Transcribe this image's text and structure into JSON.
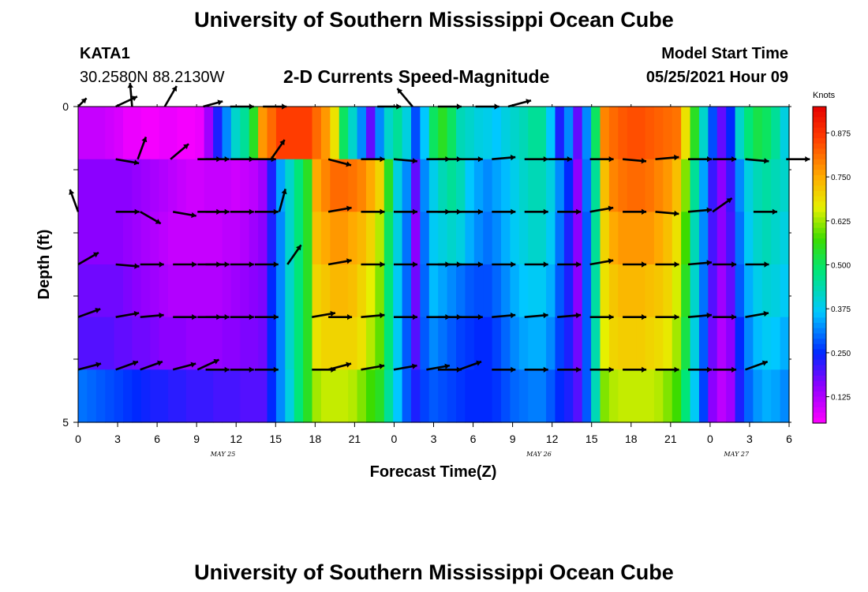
{
  "header": {
    "top_title": "University of Southern Mississippi Ocean Cube",
    "bottom_title": "University of Southern Mississippi Ocean Cube",
    "station": "KATA1",
    "coords": "30.2580N  88.2130W",
    "model_label": "Model Start Time",
    "model_time": "05/25/2021 Hour 09"
  },
  "chart_data": {
    "type": "heatmap",
    "title": "2-D Currents Speed-Magnitude",
    "xlabel": "Forecast Time(Z)",
    "ylabel": "Depth (ft)",
    "y_ticks": [
      "0",
      "5"
    ],
    "ylim": [
      0,
      5
    ],
    "x_hours": [
      0,
      3,
      6,
      9,
      12,
      15,
      18,
      21,
      24,
      27,
      30,
      33,
      36,
      39,
      42,
      45,
      48,
      51,
      54
    ],
    "x_tick_labels": [
      "0",
      "3",
      "6",
      "9",
      "12",
      "15",
      "18",
      "21",
      "0",
      "3",
      "6",
      "9",
      "12",
      "15",
      "18",
      "21",
      "0",
      "3",
      "6"
    ],
    "date_labels": [
      {
        "hour": 11,
        "text": "MAY 25"
      },
      {
        "hour": 35,
        "text": "MAY 26"
      },
      {
        "hour": 50,
        "text": "MAY 27"
      }
    ],
    "colorbar": {
      "unit": "Knots",
      "ticks": [
        0.125,
        0.25,
        0.375,
        0.5,
        0.625,
        0.75,
        0.875
      ],
      "tick_labels": [
        "0.125",
        "0.250",
        "0.375",
        "0.500",
        "0.625",
        "0.750",
        "0.875"
      ],
      "min": 0.05,
      "max": 0.95
    },
    "speed_layers": [
      [
        0.06,
        0.06,
        0.06,
        0.05,
        0.04,
        0.02,
        0.02,
        0.01,
        0.01,
        0.02,
        0.02,
        0.01,
        0.01,
        0.02,
        0.1,
        0.2,
        0.3,
        0.4,
        0.45,
        0.55,
        0.8,
        0.85,
        0.9,
        0.9,
        0.9,
        0.9,
        0.85,
        0.8,
        0.7,
        0.5,
        0.4,
        0.3,
        0.15,
        0.3,
        0.4,
        0.45,
        0.38,
        0.25,
        0.35,
        0.5,
        0.55,
        0.5,
        0.42,
        0.4,
        0.38,
        0.37,
        0.35,
        0.38,
        0.4,
        0.42,
        0.45,
        0.45,
        0.35,
        0.2,
        0.3,
        0.15,
        0.3,
        0.5,
        0.82,
        0.85,
        0.87,
        0.88,
        0.88,
        0.87,
        0.86,
        0.85,
        0.84,
        0.7,
        0.55,
        0.4,
        0.25,
        0.15,
        0.22,
        0.4,
        0.48,
        0.52,
        0.5,
        0.45,
        0.38
      ],
      [
        0.12,
        0.12,
        0.12,
        0.12,
        0.12,
        0.12,
        0.11,
        0.1,
        0.09,
        0.08,
        0.07,
        0.06,
        0.05,
        0.05,
        0.06,
        0.06,
        0.06,
        0.05,
        0.06,
        0.07,
        0.1,
        0.2,
        0.32,
        0.4,
        0.48,
        0.55,
        0.78,
        0.82,
        0.85,
        0.85,
        0.84,
        0.82,
        0.78,
        0.72,
        0.55,
        0.38,
        0.3,
        0.15,
        0.3,
        0.37,
        0.42,
        0.45,
        0.42,
        0.35,
        0.32,
        0.3,
        0.32,
        0.34,
        0.37,
        0.4,
        0.42,
        0.42,
        0.38,
        0.3,
        0.22,
        0.12,
        0.28,
        0.45,
        0.75,
        0.82,
        0.84,
        0.85,
        0.85,
        0.84,
        0.82,
        0.8,
        0.75,
        0.62,
        0.45,
        0.32,
        0.18,
        0.12,
        0.18,
        0.3,
        0.38,
        0.42,
        0.44,
        0.42,
        0.4
      ],
      [
        0.12,
        0.12,
        0.12,
        0.12,
        0.12,
        0.11,
        0.1,
        0.09,
        0.08,
        0.07,
        0.06,
        0.06,
        0.06,
        0.06,
        0.06,
        0.06,
        0.07,
        0.07,
        0.08,
        0.1,
        0.12,
        0.2,
        0.3,
        0.4,
        0.48,
        0.55,
        0.75,
        0.78,
        0.8,
        0.8,
        0.78,
        0.76,
        0.72,
        0.65,
        0.5,
        0.38,
        0.28,
        0.12,
        0.28,
        0.36,
        0.38,
        0.4,
        0.38,
        0.33,
        0.3,
        0.28,
        0.3,
        0.33,
        0.36,
        0.38,
        0.4,
        0.4,
        0.36,
        0.28,
        0.2,
        0.12,
        0.26,
        0.45,
        0.72,
        0.78,
        0.8,
        0.8,
        0.8,
        0.8,
        0.78,
        0.75,
        0.7,
        0.58,
        0.42,
        0.3,
        0.17,
        0.12,
        0.17,
        0.28,
        0.36,
        0.4,
        0.42,
        0.4,
        0.38
      ],
      [
        0.14,
        0.14,
        0.14,
        0.14,
        0.14,
        0.13,
        0.12,
        0.11,
        0.1,
        0.09,
        0.08,
        0.08,
        0.08,
        0.08,
        0.08,
        0.08,
        0.09,
        0.1,
        0.11,
        0.12,
        0.13,
        0.22,
        0.3,
        0.4,
        0.48,
        0.55,
        0.72,
        0.74,
        0.76,
        0.76,
        0.75,
        0.72,
        0.68,
        0.62,
        0.48,
        0.36,
        0.27,
        0.14,
        0.27,
        0.34,
        0.32,
        0.3,
        0.28,
        0.26,
        0.25,
        0.25,
        0.27,
        0.3,
        0.33,
        0.35,
        0.36,
        0.36,
        0.33,
        0.26,
        0.2,
        0.12,
        0.26,
        0.44,
        0.7,
        0.74,
        0.76,
        0.76,
        0.76,
        0.75,
        0.74,
        0.72,
        0.67,
        0.55,
        0.4,
        0.28,
        0.16,
        0.1,
        0.15,
        0.26,
        0.33,
        0.37,
        0.39,
        0.38,
        0.36
      ],
      [
        0.16,
        0.16,
        0.16,
        0.16,
        0.15,
        0.15,
        0.14,
        0.14,
        0.13,
        0.12,
        0.12,
        0.12,
        0.11,
        0.11,
        0.11,
        0.11,
        0.12,
        0.12,
        0.13,
        0.13,
        0.14,
        0.22,
        0.3,
        0.4,
        0.48,
        0.55,
        0.7,
        0.72,
        0.72,
        0.72,
        0.72,
        0.7,
        0.65,
        0.6,
        0.48,
        0.36,
        0.26,
        0.16,
        0.26,
        0.3,
        0.28,
        0.26,
        0.24,
        0.23,
        0.22,
        0.22,
        0.24,
        0.27,
        0.3,
        0.32,
        0.33,
        0.33,
        0.3,
        0.24,
        0.2,
        0.14,
        0.26,
        0.43,
        0.68,
        0.72,
        0.73,
        0.73,
        0.73,
        0.72,
        0.71,
        0.69,
        0.64,
        0.52,
        0.38,
        0.26,
        0.14,
        0.08,
        0.12,
        0.22,
        0.3,
        0.34,
        0.36,
        0.35,
        0.33
      ],
      [
        0.28,
        0.27,
        0.26,
        0.25,
        0.24,
        0.23,
        0.22,
        0.21,
        0.2,
        0.2,
        0.19,
        0.19,
        0.18,
        0.18,
        0.18,
        0.17,
        0.17,
        0.17,
        0.16,
        0.16,
        0.16,
        0.22,
        0.3,
        0.38,
        0.48,
        0.55,
        0.64,
        0.66,
        0.66,
        0.66,
        0.65,
        0.62,
        0.58,
        0.55,
        0.45,
        0.35,
        0.26,
        0.2,
        0.24,
        0.26,
        0.25,
        0.24,
        0.23,
        0.22,
        0.22,
        0.22,
        0.23,
        0.25,
        0.27,
        0.28,
        0.29,
        0.29,
        0.26,
        0.22,
        0.2,
        0.16,
        0.26,
        0.42,
        0.62,
        0.65,
        0.66,
        0.66,
        0.66,
        0.66,
        0.65,
        0.62,
        0.58,
        0.48,
        0.36,
        0.24,
        0.12,
        0.07,
        0.1,
        0.2,
        0.27,
        0.31,
        0.33,
        0.32,
        0.3
      ]
    ],
    "vectors": [
      [
        [
          0,
          -45,
          0.5
        ],
        [
          4.6,
          -25,
          1.0
        ],
        [
          6.6,
          -95,
          1.0
        ],
        [
          10.6,
          -60,
          1.0
        ],
        [
          15.3,
          -15,
          0.85
        ],
        [
          18.6,
          0,
          1.0
        ],
        [
          22.6,
          0,
          1.0
        ],
        [
          36.6,
          0,
          1.0
        ],
        [
          40.9,
          -130,
          1.0
        ],
        [
          44.0,
          0,
          1.0
        ],
        [
          48.6,
          0,
          1.0
        ],
        [
          52.6,
          -15,
          1.0
        ]
      ],
      [
        [
          0,
          0,
          0
        ],
        [
          4.6,
          10,
          1.0
        ],
        [
          7.3,
          -70,
          1.0
        ],
        [
          11.3,
          -40,
          1.0
        ],
        [
          14.6,
          0,
          1.0
        ],
        [
          15.6,
          0,
          1.0
        ],
        [
          18.6,
          0,
          1.0
        ],
        [
          21.3,
          0,
          1.0
        ],
        [
          23.6,
          -55,
          1.0
        ],
        [
          30.6,
          15,
          1.0
        ],
        [
          34.6,
          0,
          1.0
        ],
        [
          38.6,
          5,
          1.0
        ],
        [
          42.6,
          0,
          1.0
        ],
        [
          44.0,
          0,
          1.0
        ],
        [
          46.6,
          0,
          1.0
        ],
        [
          50.6,
          -5,
          1.0
        ],
        [
          54.6,
          0,
          1.0
        ],
        [
          57.5,
          0,
          1.0
        ],
        [
          62.6,
          0,
          1.0
        ],
        [
          66.6,
          5,
          1.0
        ],
        [
          70.6,
          -5,
          1.0
        ],
        [
          74.6,
          0,
          1.0
        ],
        [
          77.6,
          0,
          1.0
        ],
        [
          81.6,
          5,
          1.0
        ],
        [
          86.6,
          0,
          1.0
        ]
      ],
      [
        [
          0,
          -110,
          1.0
        ],
        [
          4.6,
          0,
          1.0
        ],
        [
          7.6,
          30,
          1.0
        ],
        [
          11.6,
          10,
          1.0
        ],
        [
          14.6,
          0,
          1.0
        ],
        [
          15.6,
          0,
          1.0
        ],
        [
          18.6,
          0,
          1.0
        ],
        [
          21.6,
          0,
          1.0
        ],
        [
          24.6,
          -75,
          1.0
        ],
        [
          30.6,
          -10,
          1.0
        ],
        [
          34.6,
          0,
          1.0
        ],
        [
          38.6,
          0,
          1.0
        ],
        [
          42.6,
          0,
          1.0
        ],
        [
          44.0,
          0,
          1.0
        ],
        [
          46.6,
          0,
          1.0
        ],
        [
          50.6,
          0,
          1.0
        ],
        [
          54.6,
          0,
          1.0
        ],
        [
          58.6,
          0,
          1.0
        ],
        [
          62.6,
          -10,
          1.0
        ],
        [
          66.6,
          0,
          1.0
        ],
        [
          70.6,
          5,
          1.0
        ],
        [
          74.6,
          -5,
          1.0
        ],
        [
          77.6,
          -35,
          1.0
        ],
        [
          82.6,
          0,
          1.0
        ]
      ],
      [
        [
          0,
          -30,
          1.0
        ],
        [
          4.6,
          5,
          1.0
        ],
        [
          7.6,
          0,
          1.0
        ],
        [
          11.6,
          0,
          1.0
        ],
        [
          14.6,
          0,
          1.0
        ],
        [
          15.6,
          0,
          1.0
        ],
        [
          18.6,
          0,
          1.0
        ],
        [
          21.6,
          0,
          1.0
        ],
        [
          25.6,
          -55,
          1.0
        ],
        [
          30.6,
          -10,
          1.0
        ],
        [
          34.6,
          0,
          1.0
        ],
        [
          38.6,
          0,
          1.0
        ],
        [
          42.6,
          0,
          1.0
        ],
        [
          44.0,
          0,
          1.0
        ],
        [
          46.6,
          0,
          1.0
        ],
        [
          50.6,
          0,
          1.0
        ],
        [
          54.6,
          0,
          1.0
        ],
        [
          58.6,
          0,
          1.0
        ],
        [
          62.6,
          -10,
          1.0
        ],
        [
          66.6,
          0,
          1.0
        ],
        [
          70.6,
          0,
          1.0
        ],
        [
          74.6,
          -5,
          1.0
        ],
        [
          77.6,
          0,
          1.0
        ],
        [
          81.6,
          0,
          1.0
        ]
      ],
      [
        [
          0,
          -20,
          1.0
        ],
        [
          4.6,
          -10,
          1.0
        ],
        [
          7.6,
          -5,
          1.0
        ],
        [
          11.6,
          0,
          1.0
        ],
        [
          14.6,
          0,
          1.0
        ],
        [
          15.6,
          0,
          1.0
        ],
        [
          18.6,
          0,
          1.0
        ],
        [
          21.6,
          0,
          1.0
        ],
        [
          28.6,
          -10,
          1.0
        ],
        [
          30.6,
          0,
          1.0
        ],
        [
          34.6,
          -5,
          1.0
        ],
        [
          38.6,
          0,
          1.0
        ],
        [
          42.6,
          0,
          1.0
        ],
        [
          44.0,
          0,
          1.0
        ],
        [
          46.6,
          0,
          1.0
        ],
        [
          50.6,
          -5,
          1.0
        ],
        [
          54.6,
          -5,
          1.0
        ],
        [
          58.6,
          -5,
          1.0
        ],
        [
          62.6,
          0,
          1.0
        ],
        [
          66.6,
          0,
          1.0
        ],
        [
          70.6,
          0,
          1.0
        ],
        [
          74.6,
          -5,
          1.0
        ],
        [
          77.6,
          0,
          1.0
        ],
        [
          81.6,
          -10,
          1.0
        ]
      ],
      [
        [
          0,
          -15,
          1.0
        ],
        [
          4.6,
          -20,
          1.0
        ],
        [
          7.6,
          -20,
          1.0
        ],
        [
          11.6,
          -15,
          1.0
        ],
        [
          14.6,
          -25,
          1.0
        ],
        [
          15.6,
          0,
          1.0
        ],
        [
          18.6,
          0,
          1.0
        ],
        [
          21.6,
          0,
          1.0
        ],
        [
          28.6,
          0,
          1.0
        ],
        [
          30.6,
          -15,
          1.0
        ],
        [
          34.6,
          -10,
          1.0
        ],
        [
          38.6,
          -10,
          1.0
        ],
        [
          42.6,
          -10,
          1.0
        ],
        [
          44.0,
          0,
          1.0
        ],
        [
          46.6,
          -20,
          1.0
        ],
        [
          50.6,
          0,
          1.0
        ],
        [
          54.6,
          0,
          1.0
        ],
        [
          58.6,
          0,
          1.0
        ],
        [
          62.6,
          0,
          1.0
        ],
        [
          66.6,
          0,
          1.0
        ],
        [
          70.6,
          0,
          1.0
        ],
        [
          74.6,
          0,
          1.0
        ],
        [
          77.6,
          0,
          1.0
        ],
        [
          81.6,
          -20,
          1.0
        ]
      ]
    ]
  }
}
